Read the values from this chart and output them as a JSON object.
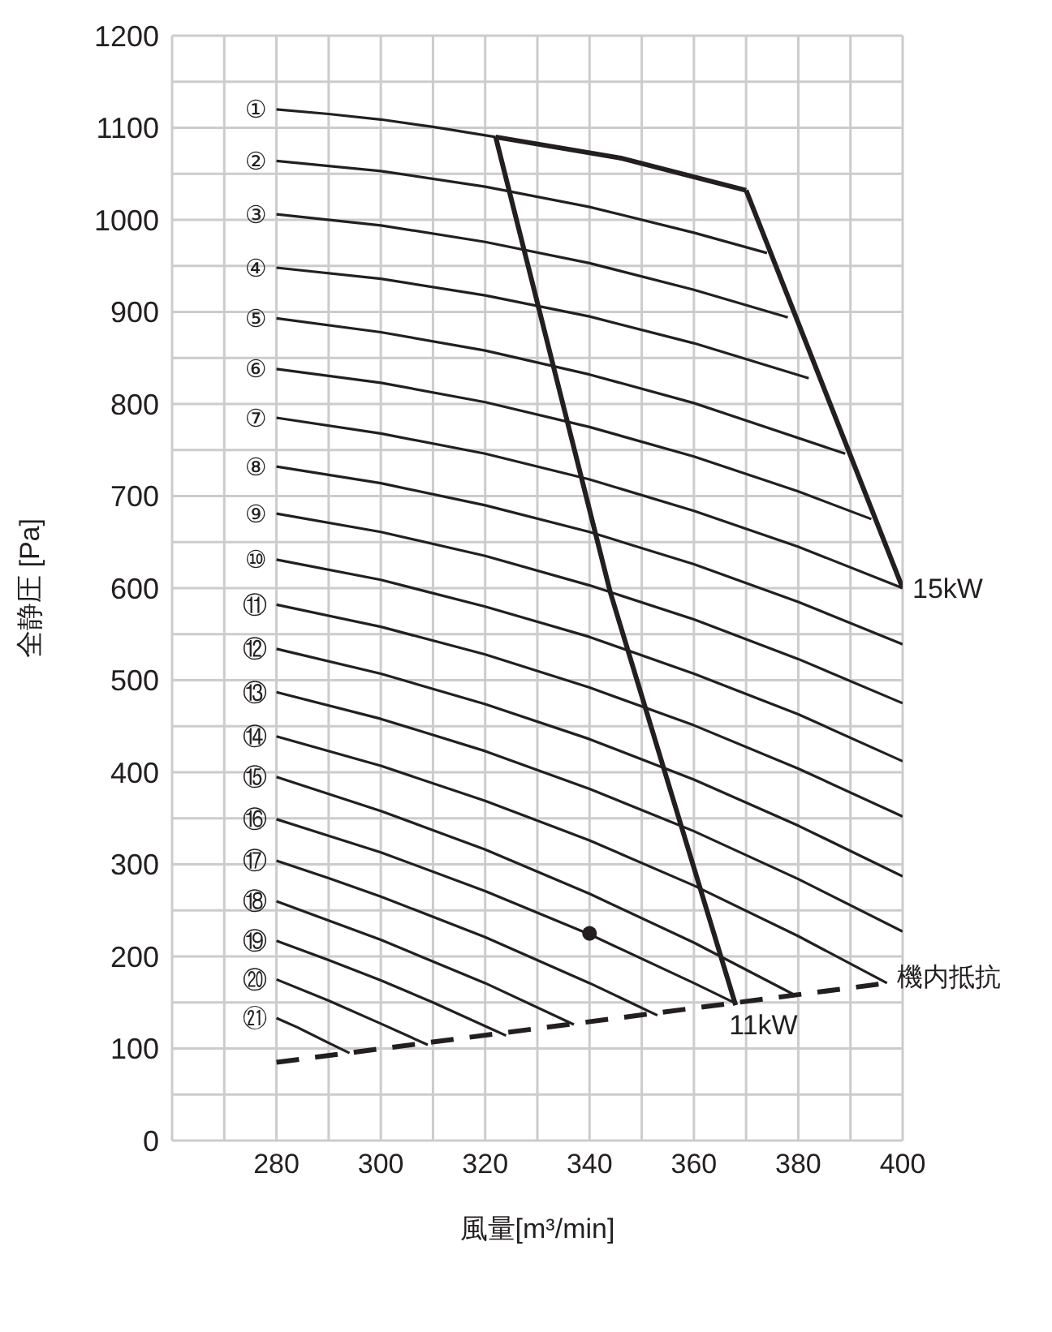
{
  "chart_data": {
    "type": "line",
    "xlabel": "風量[m³/min]",
    "ylabel": "全静圧 [Pa]",
    "xlim": [
      260,
      400
    ],
    "ylim": [
      0,
      1200
    ],
    "xticks": [
      {
        "value": 260,
        "label": null
      },
      {
        "value": 270,
        "label": null
      },
      280,
      {
        "value": 290,
        "label": null
      },
      300,
      {
        "value": 310,
        "label": null
      },
      320,
      {
        "value": 330,
        "label": null
      },
      340,
      {
        "value": 350,
        "label": null
      },
      360,
      {
        "value": 370,
        "label": null
      },
      380,
      {
        "value": 390,
        "label": null
      },
      400
    ],
    "yticks": [
      0,
      {
        "value": 50,
        "label": null
      },
      100,
      {
        "value": 150,
        "label": null
      },
      200,
      {
        "value": 250,
        "label": null
      },
      300,
      {
        "value": 350,
        "label": null
      },
      400,
      {
        "value": 450,
        "label": null
      },
      500,
      {
        "value": 550,
        "label": null
      },
      600,
      {
        "value": 650,
        "label": null
      },
      700,
      {
        "value": 750,
        "label": null
      },
      800,
      {
        "value": 850,
        "label": null
      },
      900,
      {
        "value": 950,
        "label": null
      },
      1000,
      {
        "value": 1050,
        "label": null
      },
      1100,
      {
        "value": 1150,
        "label": null
      },
      1200
    ],
    "grid": true,
    "marker": "none",
    "series": [
      {
        "name": "①",
        "color": "#231f20",
        "x": [
          280,
          290,
          300,
          310,
          322
        ],
        "values": [
          1120,
          1115,
          1109,
          1101,
          1090
        ]
      },
      {
        "name": "②",
        "color": "#231f20",
        "x": [
          280,
          300,
          320,
          340,
          360,
          374
        ],
        "values": [
          1064,
          1053,
          1036,
          1014,
          986,
          964
        ]
      },
      {
        "name": "③",
        "color": "#231f20",
        "x": [
          280,
          300,
          320,
          340,
          360,
          378
        ],
        "values": [
          1006,
          994,
          976,
          953,
          924,
          894
        ]
      },
      {
        "name": "④",
        "color": "#231f20",
        "x": [
          280,
          300,
          320,
          340,
          360,
          382
        ],
        "values": [
          948,
          936,
          918,
          895,
          866,
          828
        ]
      },
      {
        "name": "⑤",
        "color": "#231f20",
        "x": [
          280,
          300,
          320,
          340,
          360,
          389
        ],
        "values": [
          893,
          878,
          858,
          832,
          801,
          746
        ]
      },
      {
        "name": "⑥",
        "color": "#231f20",
        "x": [
          280,
          300,
          320,
          340,
          360,
          380,
          394
        ],
        "values": [
          838,
          823,
          802,
          775,
          743,
          705,
          675
        ]
      },
      {
        "name": "⑦",
        "color": "#231f20",
        "x": [
          280,
          300,
          320,
          340,
          360,
          380,
          400
        ],
        "values": [
          785,
          768,
          746,
          718,
          684,
          645,
          600
        ]
      },
      {
        "name": "⑧",
        "color": "#231f20",
        "x": [
          280,
          300,
          320,
          340,
          360,
          380,
          400
        ],
        "values": [
          732,
          714,
          690,
          661,
          626,
          585,
          539
        ]
      },
      {
        "name": "⑨",
        "color": "#231f20",
        "x": [
          280,
          300,
          320,
          340,
          360,
          380,
          400
        ],
        "values": [
          681,
          661,
          635,
          603,
          566,
          523,
          475
        ]
      },
      {
        "name": "⑩",
        "color": "#231f20",
        "x": [
          280,
          300,
          320,
          340,
          360,
          380,
          400
        ],
        "values": [
          631,
          609,
          580,
          547,
          507,
          463,
          412
        ]
      },
      {
        "name": "⑪",
        "color": "#231f20",
        "x": [
          280,
          300,
          320,
          340,
          360,
          380,
          400
        ],
        "values": [
          582,
          558,
          528,
          492,
          451,
          404,
          352
        ]
      },
      {
        "name": "⑫",
        "color": "#231f20",
        "x": [
          280,
          300,
          320,
          340,
          360,
          380,
          400
        ],
        "values": [
          534,
          507,
          474,
          436,
          392,
          342,
          287
        ]
      },
      {
        "name": "⑬",
        "color": "#231f20",
        "x": [
          280,
          300,
          320,
          340,
          360,
          380,
          400
        ],
        "values": [
          487,
          458,
          423,
          382,
          336,
          284,
          227
        ]
      },
      {
        "name": "⑭",
        "color": "#231f20",
        "x": [
          280,
          300,
          320,
          340,
          360,
          380,
          397
        ],
        "values": [
          439,
          407,
          369,
          326,
          277,
          222,
          171
        ]
      },
      {
        "name": "⑮",
        "color": "#231f20",
        "x": [
          280,
          300,
          320,
          340,
          360,
          379
        ],
        "values": [
          395,
          358,
          316,
          268,
          215,
          159
        ]
      },
      {
        "name": "⑯",
        "color": "#231f20",
        "x": [
          280,
          300,
          320,
          340,
          360,
          368
        ],
        "values": [
          349,
          313,
          271,
          224,
          171,
          149
        ]
      },
      {
        "name": "⑰",
        "color": "#231f20",
        "x": [
          280,
          290,
          300,
          320,
          340,
          353
        ],
        "values": [
          304,
          285,
          265,
          221,
          171,
          136
        ]
      },
      {
        "name": "⑱",
        "color": "#231f20",
        "x": [
          280,
          300,
          320,
          337
        ],
        "values": [
          260,
          218,
          171,
          126
        ]
      },
      {
        "name": "⑲",
        "color": "#231f20",
        "x": [
          280,
          290,
          300,
          310,
          324
        ],
        "values": [
          217,
          196,
          174,
          150,
          114
        ]
      },
      {
        "name": "⑳",
        "color": "#231f20",
        "x": [
          280,
          290,
          300,
          309
        ],
        "values": [
          175,
          152,
          127,
          104
        ]
      },
      {
        "name": "㉑",
        "color": "#231f20",
        "x": [
          280,
          284,
          290,
          294
        ],
        "values": [
          133,
          123,
          106,
          95
        ]
      },
      {
        "color": "#231f20",
        "x": [
          322,
          346,
          370
        ],
        "values": [
          1090,
          1067,
          1032
        ]
      },
      {
        "name": "11kW",
        "color": "#231f20",
        "x": [
          322,
          344,
          368
        ],
        "values": [
          1090,
          595,
          147
        ]
      },
      {
        "name": "15kW",
        "color": "#231f20",
        "x": [
          370,
          400
        ],
        "values": [
          1032,
          600
        ]
      },
      {
        "name": "機内抵抗",
        "color": "#231f20",
        "line_style": "dashed",
        "x": [
          280,
          397
        ],
        "values": [
          85,
          171
        ]
      },
      {
        "type": "scatter",
        "marker": "circle",
        "color": "#231f20",
        "x": [
          340
        ],
        "values": [
          225
        ]
      }
    ]
  }
}
